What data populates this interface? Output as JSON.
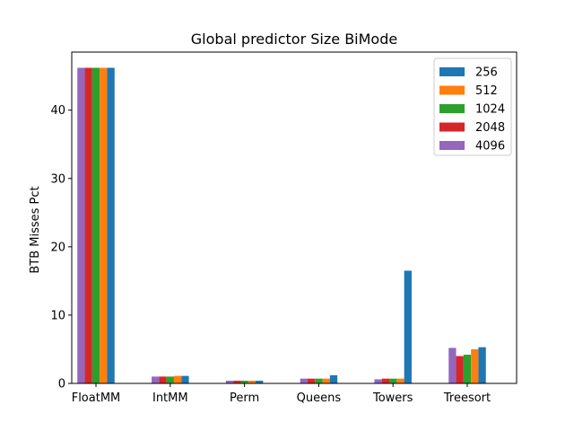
{
  "chart_data": {
    "type": "bar",
    "title": "Global predictor Size BiMode",
    "xlabel": "",
    "ylabel": "BTB Misses Pct",
    "ylim": [
      0,
      48.5
    ],
    "yticks": [
      0,
      10,
      20,
      30,
      40
    ],
    "grid": false,
    "legend_position": "top-right",
    "categories": [
      "FloatMM",
      "IntMM",
      "Perm",
      "Queens",
      "Towers",
      "Treesort"
    ],
    "series": [
      {
        "name": "256",
        "color": "#1f77b4",
        "values": [
          46.2,
          1.1,
          0.4,
          1.2,
          16.5,
          5.3
        ]
      },
      {
        "name": "512",
        "color": "#ff7f0e",
        "values": [
          46.2,
          1.1,
          0.4,
          0.7,
          0.7,
          5.0
        ]
      },
      {
        "name": "1024",
        "color": "#2ca02c",
        "values": [
          46.2,
          1.0,
          0.4,
          0.7,
          0.7,
          4.2
        ]
      },
      {
        "name": "2048",
        "color": "#d62728",
        "values": [
          46.2,
          1.0,
          0.4,
          0.7,
          0.7,
          4.0
        ]
      },
      {
        "name": "4096",
        "color": "#9467bd",
        "values": [
          46.2,
          1.0,
          0.4,
          0.7,
          0.6,
          5.2
        ]
      }
    ],
    "bar_order": [
      "4096",
      "2048",
      "1024",
      "512",
      "256"
    ]
  }
}
